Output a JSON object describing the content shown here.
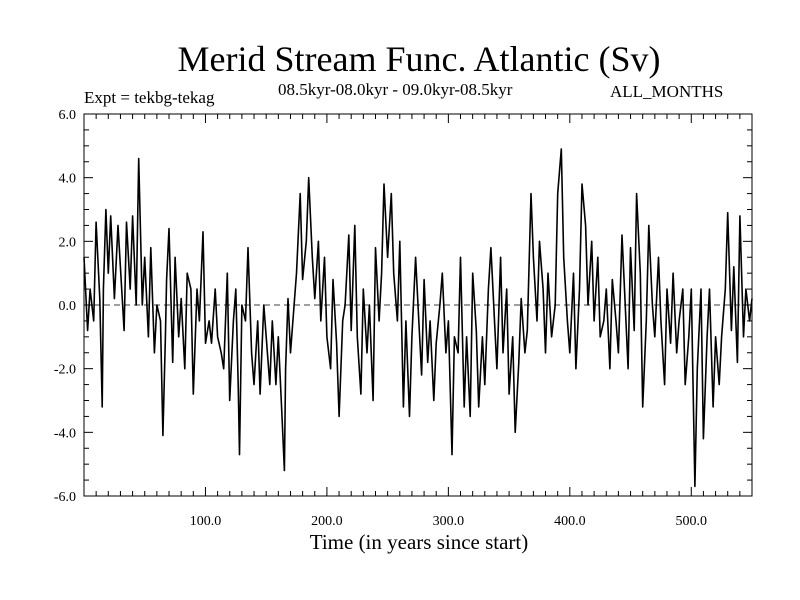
{
  "chart_data": {
    "type": "line",
    "title": "Merid Stream Func. Atlantic (Sv)",
    "subtitle": "08.5kyr-08.0kyr - 09.0kyr-08.5kyr",
    "left_annotation": "Expt = tekbg-tekag",
    "right_annotation": "ALL_MONTHS",
    "xlabel": "Time (in years since start)",
    "ylabel": "",
    "xlim": [
      0,
      550
    ],
    "ylim": [
      -6,
      6
    ],
    "xticks": [
      100,
      200,
      300,
      400,
      500
    ],
    "xtick_labels": [
      "100.0",
      "200.0",
      "300.0",
      "400.0",
      "500.0"
    ],
    "yticks": [
      -6,
      -4,
      -2,
      0,
      2,
      4,
      6
    ],
    "ytick_labels": [
      "-6.0",
      "-4.0",
      "-2.0",
      "0.0",
      "2.0",
      "4.0",
      "6.0"
    ],
    "zero_line": "dashed",
    "series": [
      {
        "name": "Expt = tekbg-tekag",
        "x": [
          0,
          3,
          5,
          8,
          10,
          13,
          15,
          16,
          18,
          20,
          22,
          25,
          28,
          30,
          33,
          35,
          38,
          40,
          43,
          45,
          48,
          50,
          53,
          55,
          58,
          60,
          63,
          65,
          67,
          68,
          70,
          73,
          75,
          78,
          80,
          83,
          85,
          88,
          90,
          93,
          95,
          98,
          100,
          103,
          105,
          108,
          110,
          113,
          115,
          118,
          120,
          123,
          125,
          127,
          128,
          130,
          133,
          135,
          138,
          140,
          143,
          145,
          148,
          150,
          153,
          155,
          158,
          160,
          163,
          165,
          166,
          168,
          170,
          173,
          175,
          178,
          180,
          183,
          185,
          188,
          190,
          193,
          195,
          198,
          200,
          203,
          205,
          208,
          210,
          213,
          215,
          218,
          220,
          223,
          225,
          228,
          230,
          233,
          235,
          238,
          240,
          243,
          245,
          247,
          250,
          253,
          255,
          258,
          260,
          263,
          265,
          268,
          270,
          273,
          275,
          278,
          280,
          283,
          285,
          288,
          290,
          293,
          295,
          298,
          300,
          303,
          305,
          308,
          310,
          313,
          315,
          318,
          320,
          323,
          325,
          328,
          330,
          333,
          335,
          338,
          340,
          343,
          345,
          348,
          350,
          353,
          355,
          358,
          360,
          363,
          365,
          368,
          370,
          373,
          375,
          378,
          380,
          382,
          385,
          388,
          390,
          393,
          395,
          398,
          400,
          403,
          405,
          408,
          410,
          413,
          415,
          418,
          420,
          423,
          425,
          428,
          430,
          433,
          435,
          438,
          440,
          443,
          445,
          448,
          450,
          453,
          455,
          458,
          460,
          463,
          465,
          468,
          470,
          473,
          475,
          478,
          480,
          483,
          485,
          488,
          490,
          493,
          495,
          498,
          500,
          503,
          505,
          508,
          510,
          513,
          515,
          518,
          520,
          523,
          525,
          528,
          530,
          533,
          535,
          538,
          540,
          543,
          545,
          548,
          550
        ],
        "values": [
          1.5,
          -0.8,
          0.5,
          -0.5,
          2.6,
          0.2,
          -3.2,
          0.5,
          3.0,
          1.0,
          2.8,
          0.2,
          2.5,
          1.2,
          -0.8,
          2.6,
          0.5,
          2.8,
          0.0,
          4.6,
          0.0,
          1.5,
          -1.0,
          1.8,
          -1.5,
          0.0,
          -0.5,
          -4.1,
          -1.0,
          0.8,
          2.4,
          -1.8,
          1.5,
          -1.0,
          0.2,
          -2.0,
          1.0,
          0.5,
          -2.8,
          0.5,
          -0.5,
          2.3,
          -1.2,
          -0.5,
          -1.2,
          0.5,
          -1.0,
          -1.5,
          -2.0,
          1.0,
          -3.0,
          -0.5,
          0.5,
          -2.5,
          -4.7,
          0.0,
          -0.5,
          1.8,
          -1.5,
          -2.5,
          -0.5,
          -2.8,
          0.0,
          -1.0,
          -2.5,
          -0.5,
          -2.5,
          -1.0,
          -3.5,
          -5.2,
          -2.0,
          0.2,
          -1.5,
          0.0,
          1.0,
          3.5,
          0.8,
          2.0,
          4.0,
          1.5,
          0.2,
          2.0,
          -0.5,
          1.5,
          -1.0,
          -2.0,
          0.8,
          -1.2,
          -3.5,
          -0.5,
          0.0,
          2.2,
          -0.8,
          2.5,
          -1.0,
          -2.8,
          0.5,
          -1.5,
          0.0,
          -3.0,
          1.8,
          -0.5,
          1.0,
          3.8,
          1.5,
          3.5,
          1.0,
          -0.5,
          2.0,
          -3.2,
          -0.5,
          -3.5,
          -1.0,
          1.5,
          0.0,
          -2.2,
          0.8,
          -1.8,
          -0.5,
          -3.0,
          -1.2,
          0.0,
          1.0,
          -1.5,
          -0.5,
          -4.7,
          -1.0,
          -1.5,
          1.5,
          -3.2,
          -1.0,
          -3.5,
          1.0,
          -0.8,
          -3.2,
          -1.0,
          -2.5,
          0.5,
          1.8,
          -0.5,
          -2.0,
          1.5,
          -1.5,
          0.5,
          -2.8,
          -1.0,
          -4.0,
          -1.8,
          0.2,
          -1.5,
          -0.8,
          3.5,
          1.5,
          -0.5,
          2.0,
          0.5,
          -1.5,
          1.0,
          -1.0,
          0.0,
          3.5,
          4.9,
          1.5,
          -0.5,
          -1.5,
          1.0,
          -2.0,
          0.5,
          3.8,
          2.5,
          0.0,
          2.0,
          -0.5,
          1.5,
          -1.0,
          -0.5,
          0.5,
          -2.0,
          0.8,
          -0.5,
          -1.5,
          2.2,
          0.5,
          -2.0,
          1.8,
          -0.8,
          3.5,
          1.0,
          -3.2,
          -0.5,
          2.5,
          0.0,
          -1.0,
          1.5,
          -0.5,
          -2.5,
          0.5,
          -1.2,
          1.0,
          -1.5,
          -0.5,
          0.5,
          -2.5,
          -1.0,
          0.5,
          -5.7,
          -2.0,
          0.5,
          -4.2,
          -1.0,
          0.5,
          -3.2,
          -1.0,
          -2.5,
          -1.0,
          0.5,
          2.9,
          -0.8,
          1.2,
          -1.8,
          2.8,
          -1.0,
          0.5,
          -0.5,
          0.2
        ]
      }
    ]
  }
}
